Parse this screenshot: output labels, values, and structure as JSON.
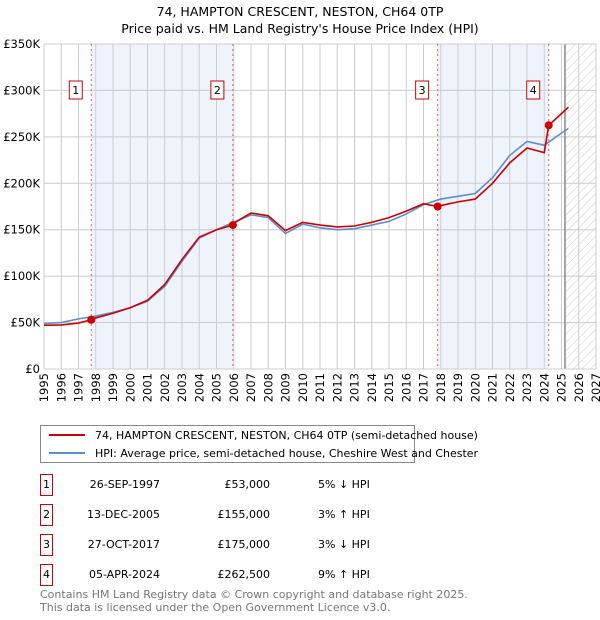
{
  "chart_data": {
    "type": "line",
    "title": "74, HAMPTON CRESCENT, NESTON, CH64 0TP",
    "subtitle": "Price paid vs. HM Land Registry's House Price Index (HPI)",
    "xlim": [
      1995,
      2027
    ],
    "ylim": [
      0,
      350000
    ],
    "x_ticks": [
      "1995",
      "1996",
      "1997",
      "1998",
      "1999",
      "2000",
      "2001",
      "2002",
      "2003",
      "2004",
      "2005",
      "2006",
      "2007",
      "2008",
      "2009",
      "2010",
      "2011",
      "2012",
      "2013",
      "2014",
      "2015",
      "2016",
      "2017",
      "2018",
      "2019",
      "2020",
      "2021",
      "2022",
      "2023",
      "2024",
      "2025",
      "2026",
      "2027"
    ],
    "y_ticks": [
      {
        "v": 0,
        "label": "£0"
      },
      {
        "v": 50000,
        "label": "£50K"
      },
      {
        "v": 100000,
        "label": "£100K"
      },
      {
        "v": 150000,
        "label": "£150K"
      },
      {
        "v": 200000,
        "label": "£200K"
      },
      {
        "v": 250000,
        "label": "£250K"
      },
      {
        "v": 300000,
        "label": "£300K"
      },
      {
        "v": 350000,
        "label": "£350K"
      }
    ],
    "grid": true,
    "forecast_start": 2025.2,
    "series": [
      {
        "name": "74, HAMPTON CRESCENT, NESTON, CH64 0TP (semi-detached house)",
        "color": "#cc0000",
        "x": [
          1995,
          1996,
          1997,
          1997.74,
          1998,
          1999,
          2000,
          2001,
          2002,
          2003,
          2004,
          2005,
          2005.95,
          2006,
          2007,
          2008,
          2009,
          2010,
          2011,
          2012,
          2013,
          2014,
          2015,
          2016,
          2017,
          2017.82,
          2018,
          2019,
          2020,
          2021,
          2022,
          2023,
          2024,
          2024.26,
          2025,
          2025.4
        ],
        "y": [
          47000,
          47500,
          49500,
          53000,
          55000,
          60000,
          66000,
          74000,
          91000,
          118000,
          142000,
          150000,
          155000,
          157000,
          168000,
          165000,
          149000,
          158000,
          155000,
          153000,
          154000,
          158000,
          163000,
          170000,
          178000,
          175000,
          176000,
          180000,
          183000,
          200000,
          222000,
          238000,
          233000,
          262500,
          275000,
          282000
        ]
      },
      {
        "name": "HPI: Average price, semi-detached house, Cheshire West and Chester",
        "color": "#5b8fd0",
        "x": [
          1995,
          1996,
          1997,
          1998,
          1999,
          2000,
          2001,
          2002,
          2003,
          2004,
          2005,
          2006,
          2007,
          2008,
          2009,
          2010,
          2011,
          2012,
          2013,
          2014,
          2015,
          2016,
          2017,
          2018,
          2019,
          2020,
          2021,
          2022,
          2023,
          2024,
          2025,
          2025.4
        ],
        "y": [
          49000,
          50000,
          54000,
          57000,
          61000,
          66000,
          73000,
          89000,
          116000,
          141000,
          150000,
          158000,
          166000,
          163000,
          146000,
          156000,
          152000,
          150000,
          151000,
          155000,
          159000,
          167000,
          177000,
          183000,
          186000,
          189000,
          206000,
          230000,
          245000,
          241000,
          254000,
          259000
        ]
      }
    ],
    "sales": [
      {
        "n": "1",
        "x": 1997.74,
        "y": 53000,
        "date": "26-SEP-1997",
        "price": "£53,000",
        "hpi": "5% ↓ HPI"
      },
      {
        "n": "2",
        "x": 2005.95,
        "y": 155000,
        "date": "13-DEC-2005",
        "price": "£155,000",
        "hpi": "3% ↑ HPI"
      },
      {
        "n": "3",
        "x": 2017.82,
        "y": 175000,
        "date": "27-OCT-2017",
        "price": "£175,000",
        "hpi": "3% ↓ HPI"
      },
      {
        "n": "4",
        "x": 2024.26,
        "y": 262500,
        "date": "05-APR-2024",
        "price": "£262,500",
        "hpi": "9% ↑ HPI"
      }
    ]
  },
  "footer": [
    "Contains HM Land Registry data © Crown copyright and database right 2025.",
    "This data is licensed under the Open Government Licence v3.0."
  ]
}
